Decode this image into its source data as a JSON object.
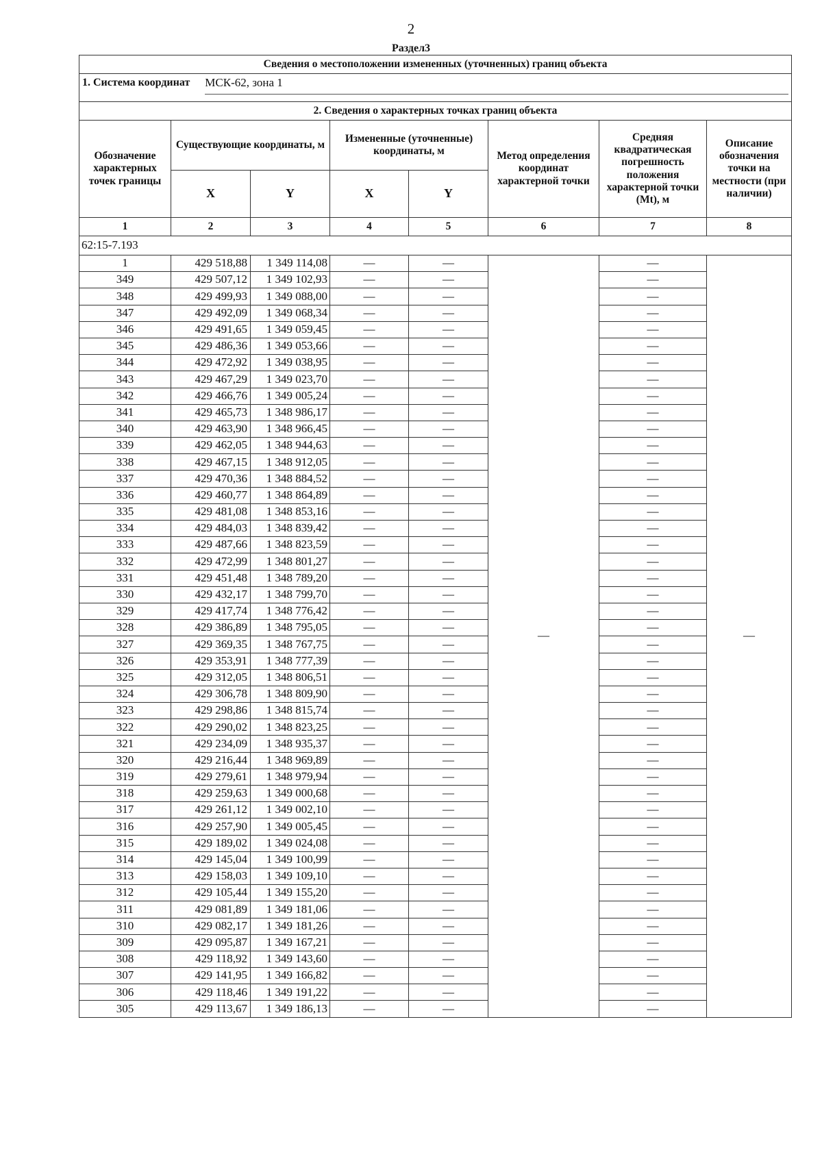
{
  "page_number": "2",
  "section_title": "Раздел3",
  "table_title": "Сведения о местоположении измененных (уточненных) границ объекта",
  "coordinate_system": {
    "label": "1. Система координат",
    "value": "МСК-62, зона 1"
  },
  "points_section_title": "2. Сведения о характерных точках границ объекта",
  "headers": {
    "col1": "Обозначение характерных точек границы",
    "existing": "Существующие координаты, м",
    "changed": "Измененные (уточненные) координаты, м",
    "x": "X",
    "y": "Y",
    "col6": "Метод определения координат характерной точки",
    "col7": "Средняя квадратическая погрешность положения характерной точки (Mt), м",
    "col8": "Описание обозначения точки на местности (при наличии)"
  },
  "column_numbers": [
    "1",
    "2",
    "3",
    "4",
    "5",
    "6",
    "7",
    "8"
  ],
  "parcel_ref": "62:15-7.193",
  "dash": "—",
  "rows": [
    [
      "1",
      "429 518,88",
      "1 349 114,08"
    ],
    [
      "349",
      "429 507,12",
      "1 349 102,93"
    ],
    [
      "348",
      "429 499,93",
      "1 349 088,00"
    ],
    [
      "347",
      "429 492,09",
      "1 349 068,34"
    ],
    [
      "346",
      "429 491,65",
      "1 349 059,45"
    ],
    [
      "345",
      "429 486,36",
      "1 349 053,66"
    ],
    [
      "344",
      "429 472,92",
      "1 349 038,95"
    ],
    [
      "343",
      "429 467,29",
      "1 349 023,70"
    ],
    [
      "342",
      "429 466,76",
      "1 349 005,24"
    ],
    [
      "341",
      "429 465,73",
      "1 348 986,17"
    ],
    [
      "340",
      "429 463,90",
      "1 348 966,45"
    ],
    [
      "339",
      "429 462,05",
      "1 348 944,63"
    ],
    [
      "338",
      "429 467,15",
      "1 348 912,05"
    ],
    [
      "337",
      "429 470,36",
      "1 348 884,52"
    ],
    [
      "336",
      "429 460,77",
      "1 348 864,89"
    ],
    [
      "335",
      "429 481,08",
      "1 348 853,16"
    ],
    [
      "334",
      "429 484,03",
      "1 348 839,42"
    ],
    [
      "333",
      "429 487,66",
      "1 348 823,59"
    ],
    [
      "332",
      "429 472,99",
      "1 348 801,27"
    ],
    [
      "331",
      "429 451,48",
      "1 348 789,20"
    ],
    [
      "330",
      "429 432,17",
      "1 348 799,70"
    ],
    [
      "329",
      "429 417,74",
      "1 348 776,42"
    ],
    [
      "328",
      "429 386,89",
      "1 348 795,05"
    ],
    [
      "327",
      "429 369,35",
      "1 348 767,75"
    ],
    [
      "326",
      "429 353,91",
      "1 348 777,39"
    ],
    [
      "325",
      "429 312,05",
      "1 348 806,51"
    ],
    [
      "324",
      "429 306,78",
      "1 348 809,90"
    ],
    [
      "323",
      "429 298,86",
      "1 348 815,74"
    ],
    [
      "322",
      "429 290,02",
      "1 348 823,25"
    ],
    [
      "321",
      "429 234,09",
      "1 348 935,37"
    ],
    [
      "320",
      "429 216,44",
      "1 348 969,89"
    ],
    [
      "319",
      "429 279,61",
      "1 348 979,94"
    ],
    [
      "318",
      "429 259,63",
      "1 349 000,68"
    ],
    [
      "317",
      "429 261,12",
      "1 349 002,10"
    ],
    [
      "316",
      "429 257,90",
      "1 349 005,45"
    ],
    [
      "315",
      "429 189,02",
      "1 349 024,08"
    ],
    [
      "314",
      "429 145,04",
      "1 349 100,99"
    ],
    [
      "313",
      "429 158,03",
      "1 349 109,10"
    ],
    [
      "312",
      "429 105,44",
      "1 349 155,20"
    ],
    [
      "311",
      "429 081,89",
      "1 349 181,06"
    ],
    [
      "310",
      "429 082,17",
      "1 349 181,26"
    ],
    [
      "309",
      "429 095,87",
      "1 349 167,21"
    ],
    [
      "308",
      "429 118,92",
      "1 349 143,60"
    ],
    [
      "307",
      "429 141,95",
      "1 349 166,82"
    ],
    [
      "306",
      "429 118,46",
      "1 349 191,22"
    ],
    [
      "305",
      "429 113,67",
      "1 349 186,13"
    ]
  ]
}
